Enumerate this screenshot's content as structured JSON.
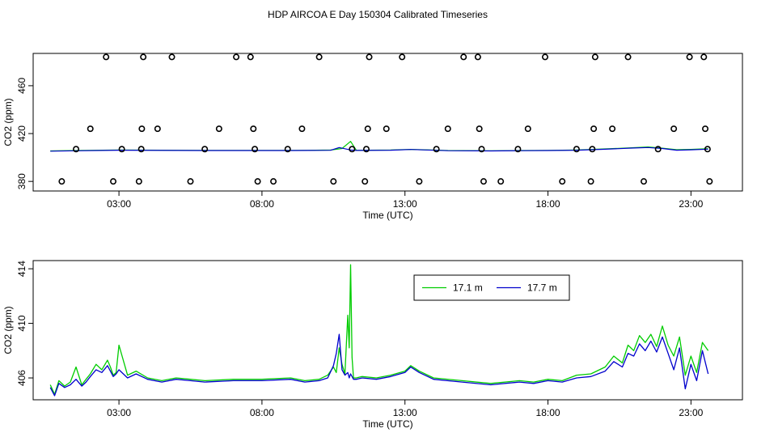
{
  "title": "HDP AIRCOA E  Day 150304  Calibrated Timeseries",
  "chart_data": [
    {
      "type": "scatter",
      "xlabel": "Time (UTC)",
      "ylabel": "CO2 (ppm)",
      "x_ticks": [
        {
          "value": 3,
          "label": "03:00"
        },
        {
          "value": 8,
          "label": "08:00"
        },
        {
          "value": 13,
          "label": "13:00"
        },
        {
          "value": 18,
          "label": "18:00"
        },
        {
          "value": 23,
          "label": "23:00"
        }
      ],
      "y_ticks": [
        380,
        420,
        460
      ],
      "xlim": [
        0.0,
        24.8
      ],
      "ylim": [
        372,
        487
      ],
      "grid": false,
      "circles": [
        {
          "x": 1.0,
          "y": 380
        },
        {
          "x": 1.5,
          "y": 407
        },
        {
          "x": 2.0,
          "y": 424
        },
        {
          "x": 2.55,
          "y": 484
        },
        {
          "x": 2.8,
          "y": 380
        },
        {
          "x": 3.1,
          "y": 407
        },
        {
          "x": 3.7,
          "y": 380
        },
        {
          "x": 3.78,
          "y": 407
        },
        {
          "x": 3.8,
          "y": 424
        },
        {
          "x": 3.85,
          "y": 484
        },
        {
          "x": 4.35,
          "y": 424
        },
        {
          "x": 4.85,
          "y": 484
        },
        {
          "x": 5.5,
          "y": 380
        },
        {
          "x": 6.0,
          "y": 407
        },
        {
          "x": 6.5,
          "y": 424
        },
        {
          "x": 7.1,
          "y": 484
        },
        {
          "x": 7.6,
          "y": 484
        },
        {
          "x": 7.7,
          "y": 424
        },
        {
          "x": 7.75,
          "y": 407
        },
        {
          "x": 7.85,
          "y": 380
        },
        {
          "x": 8.4,
          "y": 380
        },
        {
          "x": 8.9,
          "y": 407
        },
        {
          "x": 9.4,
          "y": 424
        },
        {
          "x": 10.0,
          "y": 484
        },
        {
          "x": 10.5,
          "y": 380
        },
        {
          "x": 11.15,
          "y": 407
        },
        {
          "x": 11.6,
          "y": 380
        },
        {
          "x": 11.65,
          "y": 407
        },
        {
          "x": 11.7,
          "y": 424
        },
        {
          "x": 11.75,
          "y": 484
        },
        {
          "x": 12.35,
          "y": 424
        },
        {
          "x": 12.9,
          "y": 484
        },
        {
          "x": 13.5,
          "y": 380
        },
        {
          "x": 14.1,
          "y": 407
        },
        {
          "x": 14.5,
          "y": 424
        },
        {
          "x": 15.05,
          "y": 484
        },
        {
          "x": 15.55,
          "y": 484
        },
        {
          "x": 15.6,
          "y": 424
        },
        {
          "x": 15.68,
          "y": 407
        },
        {
          "x": 15.75,
          "y": 380
        },
        {
          "x": 16.35,
          "y": 380
        },
        {
          "x": 16.95,
          "y": 407
        },
        {
          "x": 17.3,
          "y": 424
        },
        {
          "x": 17.9,
          "y": 484
        },
        {
          "x": 18.5,
          "y": 380
        },
        {
          "x": 19.0,
          "y": 407
        },
        {
          "x": 19.5,
          "y": 380
        },
        {
          "x": 19.55,
          "y": 407
        },
        {
          "x": 19.6,
          "y": 424
        },
        {
          "x": 19.65,
          "y": 484
        },
        {
          "x": 20.25,
          "y": 424
        },
        {
          "x": 20.8,
          "y": 484
        },
        {
          "x": 21.35,
          "y": 380
        },
        {
          "x": 21.85,
          "y": 407
        },
        {
          "x": 22.4,
          "y": 424
        },
        {
          "x": 22.95,
          "y": 484
        },
        {
          "x": 23.45,
          "y": 484
        },
        {
          "x": 23.5,
          "y": 424
        },
        {
          "x": 23.58,
          "y": 407
        },
        {
          "x": 23.65,
          "y": 380
        }
      ],
      "series": [
        {
          "color": "#00cc00",
          "x": [
            0.6,
            1.5,
            3.0,
            6.0,
            9.0,
            10.4,
            10.8,
            11.1,
            11.3,
            12.5,
            13.2,
            14.5,
            16.0,
            17.0,
            18.0,
            19.0,
            20.0,
            21.0,
            21.5,
            22.0,
            22.5,
            23.0,
            23.6
          ],
          "y": [
            405.5,
            405.8,
            406.3,
            405.9,
            405.9,
            406.2,
            407.5,
            413.5,
            406.0,
            406.2,
            406.8,
            405.8,
            405.6,
            405.8,
            405.9,
            406.3,
            407.2,
            408.2,
            408.8,
            407.8,
            406.5,
            406.8,
            407.4
          ]
        },
        {
          "color": "#0000cc",
          "x": [
            0.6,
            1.5,
            3.0,
            6.0,
            9.0,
            10.4,
            10.7,
            11.1,
            11.3,
            12.5,
            13.2,
            14.5,
            16.0,
            17.0,
            18.0,
            19.0,
            20.0,
            21.0,
            21.5,
            22.0,
            22.5,
            23.0,
            23.6
          ],
          "y": [
            405.3,
            405.6,
            406.1,
            405.8,
            405.8,
            406.0,
            408.3,
            406.3,
            405.9,
            406.1,
            406.7,
            405.7,
            405.5,
            405.7,
            405.8,
            406.1,
            406.9,
            407.9,
            408.3,
            407.5,
            406.1,
            406.4,
            407.0
          ]
        }
      ]
    },
    {
      "type": "line",
      "xlabel": "Time (UTC)",
      "ylabel": "CO2 (ppm)",
      "x_ticks": [
        {
          "value": 3,
          "label": "03:00"
        },
        {
          "value": 8,
          "label": "08:00"
        },
        {
          "value": 13,
          "label": "13:00"
        },
        {
          "value": 18,
          "label": "18:00"
        },
        {
          "value": 23,
          "label": "23:00"
        }
      ],
      "y_ticks": [
        406,
        410,
        414
      ],
      "xlim": [
        0.0,
        24.8
      ],
      "ylim": [
        404.4,
        414.6
      ],
      "grid": false,
      "legend_position": "top-right",
      "series": [
        {
          "name": "17.1 m",
          "color": "#00cc00",
          "x": [
            0.6,
            0.75,
            0.9,
            1.1,
            1.3,
            1.5,
            1.7,
            1.85,
            2.0,
            2.2,
            2.4,
            2.6,
            2.7,
            2.8,
            2.9,
            3.0,
            3.3,
            3.6,
            4.0,
            4.5,
            5.0,
            5.5,
            6.0,
            7.0,
            8.0,
            9.0,
            9.5,
            10.0,
            10.3,
            10.5,
            10.6,
            10.7,
            10.8,
            10.9,
            11.0,
            11.05,
            11.1,
            11.15,
            11.2,
            11.3,
            11.5,
            12.0,
            12.5,
            13.0,
            13.2,
            13.5,
            14.0,
            15.0,
            16.0,
            17.0,
            17.5,
            18.0,
            18.5,
            19.0,
            19.5,
            20.0,
            20.3,
            20.6,
            20.8,
            21.0,
            21.2,
            21.4,
            21.6,
            21.8,
            22.0,
            22.2,
            22.4,
            22.6,
            22.8,
            23.0,
            23.2,
            23.4,
            23.6
          ],
          "y": [
            405.5,
            404.8,
            405.8,
            405.4,
            405.7,
            406.8,
            405.5,
            405.9,
            406.3,
            407.0,
            406.6,
            407.3,
            406.8,
            406.2,
            406.4,
            408.4,
            406.2,
            406.5,
            406.0,
            405.8,
            406.0,
            405.9,
            405.8,
            405.9,
            405.9,
            406.0,
            405.8,
            405.9,
            406.2,
            406.8,
            406.4,
            408.2,
            407.0,
            406.3,
            410.6,
            408.2,
            414.3,
            407.5,
            406.0,
            406.0,
            406.1,
            406.0,
            406.2,
            406.5,
            406.9,
            406.5,
            406.0,
            405.8,
            405.6,
            405.8,
            405.7,
            405.9,
            405.8,
            406.2,
            406.3,
            406.8,
            407.6,
            407.1,
            408.4,
            408.0,
            409.1,
            408.6,
            409.2,
            408.3,
            409.8,
            408.4,
            407.6,
            409.0,
            406.2,
            407.6,
            406.4,
            408.6,
            408.0
          ]
        },
        {
          "name": "17.7 m",
          "color": "#0000cc",
          "x": [
            0.6,
            0.75,
            0.9,
            1.1,
            1.3,
            1.5,
            1.7,
            1.85,
            2.0,
            2.2,
            2.4,
            2.6,
            2.7,
            2.8,
            2.9,
            3.0,
            3.3,
            3.6,
            4.0,
            4.5,
            5.0,
            5.5,
            6.0,
            7.0,
            8.0,
            9.0,
            9.5,
            10.0,
            10.3,
            10.5,
            10.6,
            10.7,
            10.8,
            10.9,
            11.0,
            11.05,
            11.1,
            11.15,
            11.2,
            11.3,
            11.5,
            12.0,
            12.5,
            13.0,
            13.2,
            13.5,
            14.0,
            15.0,
            16.0,
            17.0,
            17.5,
            18.0,
            18.5,
            19.0,
            19.5,
            20.0,
            20.3,
            20.6,
            20.8,
            21.0,
            21.2,
            21.4,
            21.6,
            21.8,
            22.0,
            22.2,
            22.4,
            22.6,
            22.8,
            23.0,
            23.2,
            23.4,
            23.6
          ],
          "y": [
            405.3,
            404.7,
            405.6,
            405.3,
            405.5,
            405.9,
            405.4,
            405.7,
            406.1,
            406.6,
            406.4,
            406.9,
            406.5,
            406.1,
            406.3,
            406.6,
            406.0,
            406.3,
            405.9,
            405.7,
            405.9,
            405.8,
            405.7,
            405.8,
            405.8,
            405.9,
            405.7,
            405.8,
            406.0,
            406.9,
            407.8,
            409.2,
            406.6,
            406.2,
            406.4,
            406.0,
            406.3,
            406.1,
            405.9,
            405.9,
            406.0,
            405.9,
            406.1,
            406.4,
            406.8,
            406.4,
            405.9,
            405.7,
            405.5,
            405.7,
            405.6,
            405.8,
            405.7,
            406.0,
            406.1,
            406.5,
            407.2,
            406.8,
            407.8,
            407.6,
            408.5,
            408.0,
            408.7,
            407.9,
            409.0,
            407.8,
            406.6,
            408.2,
            405.2,
            407.0,
            405.8,
            408.0,
            406.3
          ]
        }
      ]
    }
  ]
}
